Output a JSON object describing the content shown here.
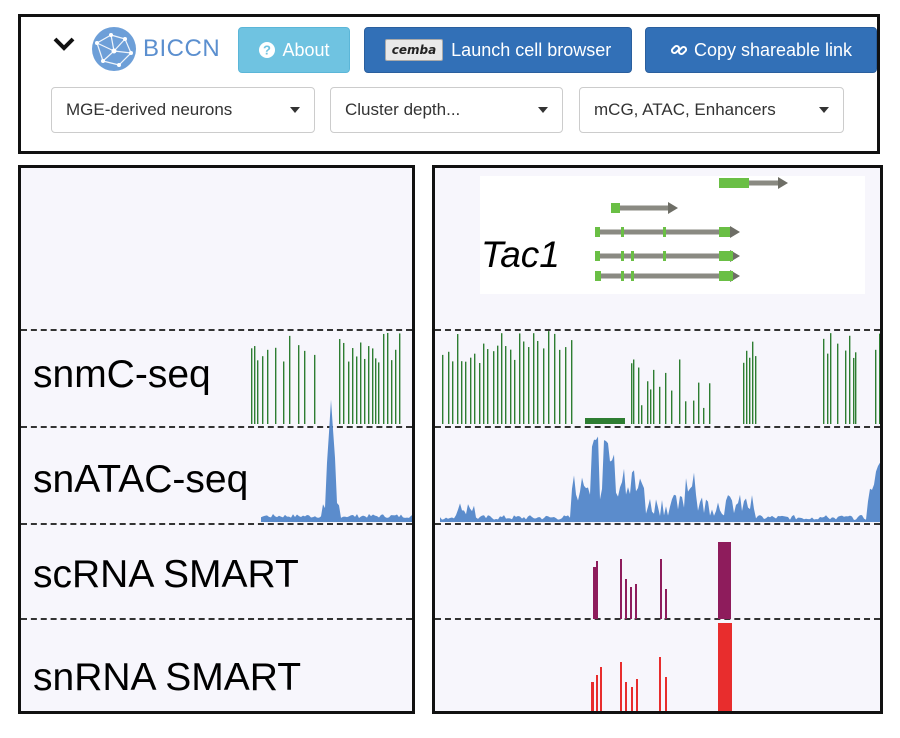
{
  "toolbar": {
    "logo_text": "BICCN",
    "about_label": "About",
    "launch_badge": "cemba",
    "launch_label": "Launch cell browser",
    "copy_label": "Copy shareable link"
  },
  "filters": {
    "cell_type": "MGE-derived neurons",
    "cluster_depth": "Cluster depth...",
    "modalities": "mCG, ATAC, Enhancers"
  },
  "tracks": [
    {
      "label": "snmC-seq",
      "color": "#2e7d32"
    },
    {
      "label": "snATAC-seq",
      "color": "#5b8ccc"
    },
    {
      "label": "scRNA SMART",
      "color": "#8e1c5c"
    },
    {
      "label": "snRNA SMART",
      "color": "#e82d2d"
    }
  ],
  "gene": {
    "name": "Tac1",
    "color": "#6abf45"
  },
  "colors": {
    "about": "#6fc3e1",
    "primary": "#3270b7"
  }
}
